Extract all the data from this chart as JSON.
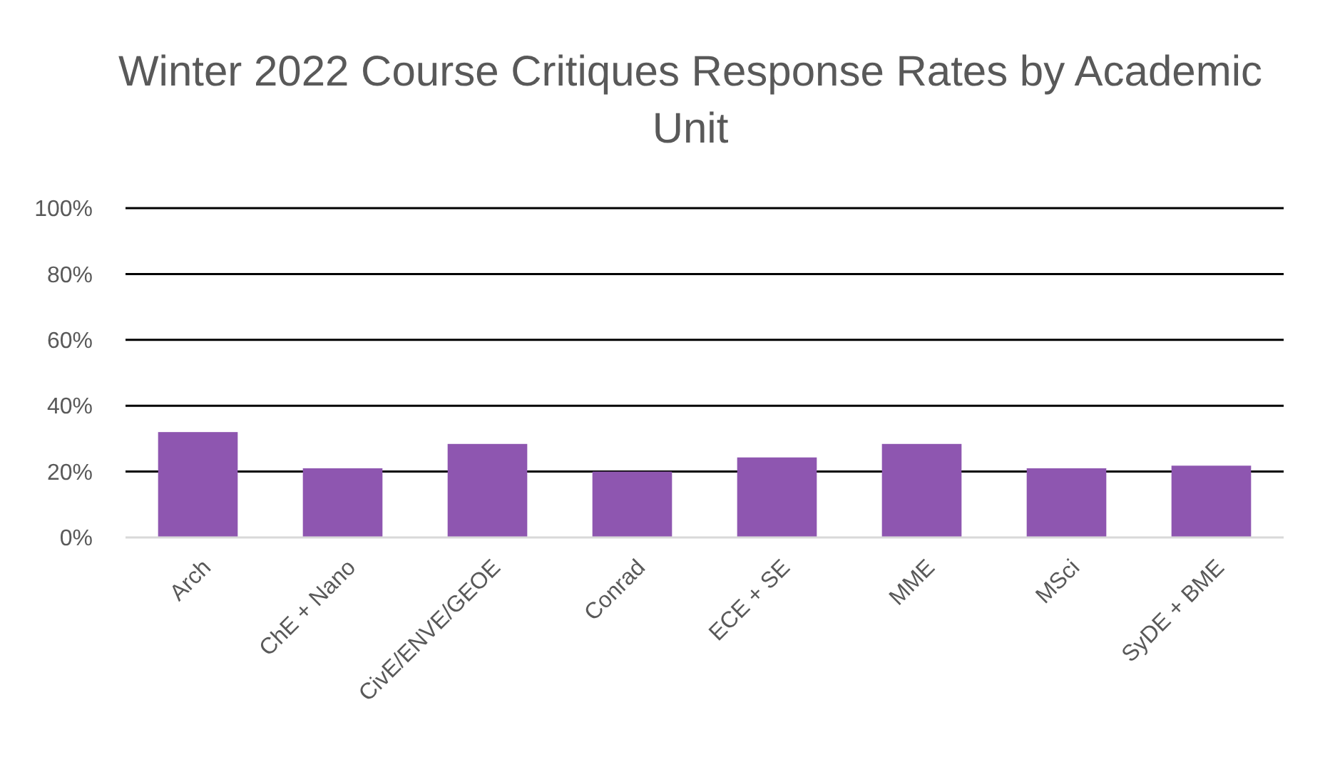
{
  "chart_data": {
    "type": "bar",
    "title": "Winter 2022 Course Critiques Response Rates by Academic Unit",
    "categories": [
      "Arch",
      "ChE + Nano",
      "CivE/ENVE/GEOE",
      "Conrad",
      "ECE + SE",
      "MME",
      "MSci",
      "SyDE + BME"
    ],
    "values": [
      0.32,
      0.21,
      0.284,
      0.2,
      0.243,
      0.284,
      0.21,
      0.218
    ],
    "color": "#8e56b0",
    "ylim": [
      0,
      1
    ],
    "yticks": [
      {
        "value": 0,
        "label": "0%"
      },
      {
        "value": 0.2,
        "label": "20%"
      },
      {
        "value": 0.4,
        "label": "40%"
      },
      {
        "value": 0.6,
        "label": "60%"
      },
      {
        "value": 0.8,
        "label": "80%"
      },
      {
        "value": 1,
        "label": "100%"
      }
    ],
    "grid": "y"
  }
}
